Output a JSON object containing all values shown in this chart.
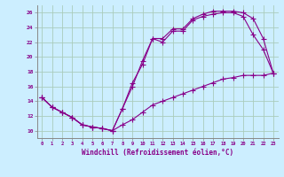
{
  "xlabel": "Windchill (Refroidissement éolien,°C)",
  "background_color": "#cceeff",
  "grid_color": "#aaccbb",
  "line_color": "#880088",
  "xlim": [
    -0.5,
    23.5
  ],
  "ylim": [
    9.0,
    27.0
  ],
  "xticks": [
    0,
    1,
    2,
    3,
    4,
    5,
    6,
    7,
    8,
    9,
    10,
    11,
    12,
    13,
    14,
    15,
    16,
    17,
    18,
    19,
    20,
    21,
    22,
    23
  ],
  "yticks": [
    10,
    12,
    14,
    16,
    18,
    20,
    22,
    24,
    26
  ],
  "line1_x": [
    0,
    1,
    2,
    3,
    4,
    5,
    6,
    7,
    8,
    9,
    10,
    11,
    12,
    13,
    14,
    15,
    16,
    17,
    18,
    19,
    20,
    21,
    22,
    23
  ],
  "line1_y": [
    14.5,
    13.2,
    12.5,
    11.8,
    10.8,
    10.5,
    10.3,
    10.0,
    13.0,
    16.5,
    19.0,
    22.5,
    22.0,
    23.5,
    23.5,
    25.0,
    25.5,
    25.8,
    26.0,
    26.0,
    25.5,
    23.0,
    21.0,
    17.8
  ],
  "line2_x": [
    0,
    1,
    2,
    3,
    4,
    5,
    6,
    7,
    8,
    9,
    10,
    11,
    12,
    13,
    14,
    15,
    16,
    17,
    18,
    19,
    20,
    21,
    22,
    23
  ],
  "line2_y": [
    14.5,
    13.2,
    12.5,
    11.8,
    10.8,
    10.5,
    10.3,
    10.0,
    13.0,
    16.0,
    19.5,
    22.5,
    22.5,
    23.8,
    23.8,
    25.2,
    25.8,
    26.2,
    26.2,
    26.2,
    26.0,
    25.2,
    22.5,
    17.8
  ],
  "line3_x": [
    0,
    1,
    2,
    3,
    4,
    5,
    6,
    7,
    8,
    9,
    10,
    11,
    12,
    13,
    14,
    15,
    16,
    17,
    18,
    19,
    20,
    21,
    22,
    23
  ],
  "line3_y": [
    14.5,
    13.2,
    12.5,
    11.8,
    10.8,
    10.5,
    10.3,
    10.0,
    10.8,
    11.5,
    12.5,
    13.5,
    14.0,
    14.5,
    15.0,
    15.5,
    16.0,
    16.5,
    17.0,
    17.2,
    17.5,
    17.5,
    17.5,
    17.8
  ]
}
